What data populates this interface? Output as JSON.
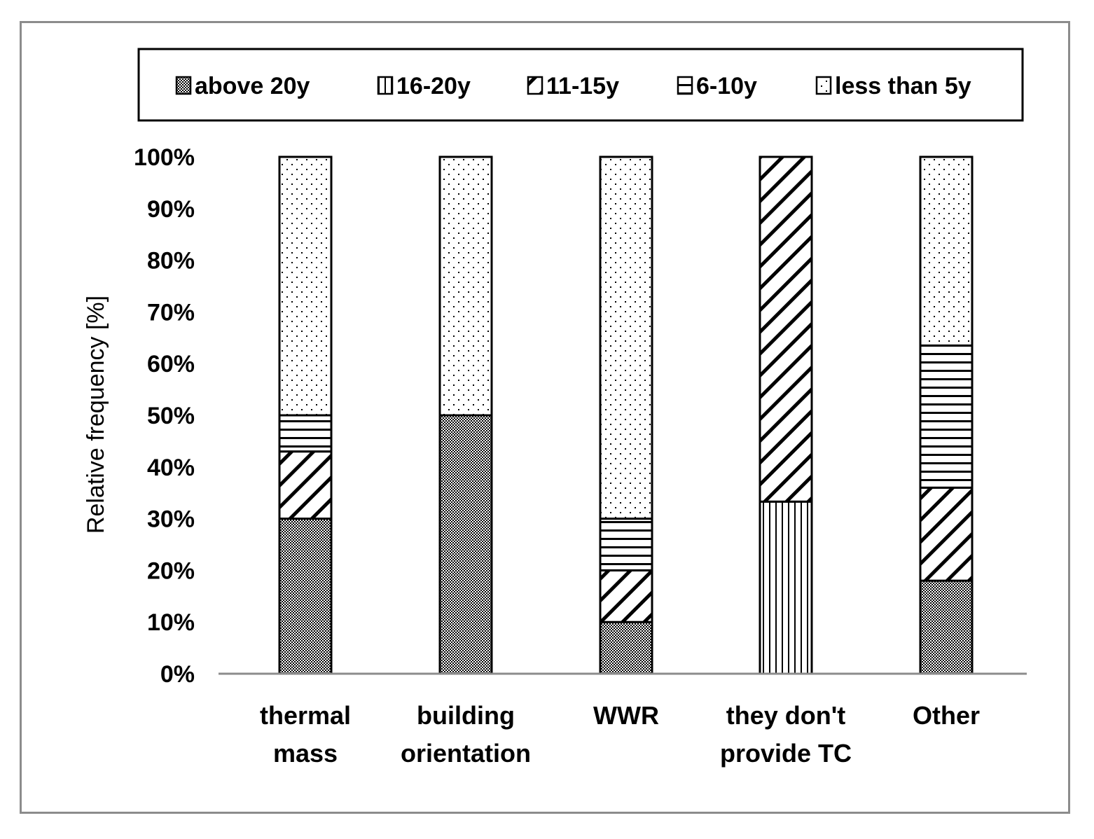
{
  "chart_data": {
    "type": "bar",
    "stacked": true,
    "normalized": true,
    "title": "",
    "xlabel": "",
    "ylabel": "Relative frequency [%]",
    "ylim": [
      0,
      100
    ],
    "yticks": [
      "0%",
      "10%",
      "20%",
      "30%",
      "40%",
      "50%",
      "60%",
      "70%",
      "80%",
      "90%",
      "100%"
    ],
    "legend_position": "top",
    "categories": [
      [
        "thermal",
        "mass"
      ],
      [
        "building",
        "orientation"
      ],
      [
        "WWR"
      ],
      [
        "they don't",
        "provide TC"
      ],
      [
        "Other"
      ]
    ],
    "series": [
      {
        "name": "above 20y",
        "pattern": "dots-dense",
        "values": [
          30,
          50,
          10,
          0,
          18
        ]
      },
      {
        "name": "16-20y",
        "pattern": "vertical-lines",
        "values": [
          0,
          0,
          0,
          33.3,
          0
        ]
      },
      {
        "name": "11-15y",
        "pattern": "diagonal-lines",
        "values": [
          13,
          0,
          10,
          66.7,
          18
        ]
      },
      {
        "name": "6-10y",
        "pattern": "horizontal-lines",
        "values": [
          7,
          0,
          10,
          0,
          27.5
        ]
      },
      {
        "name": "less than 5y",
        "pattern": "dots-sparse",
        "values": [
          50,
          50,
          70,
          0,
          36.5
        ]
      }
    ]
  }
}
